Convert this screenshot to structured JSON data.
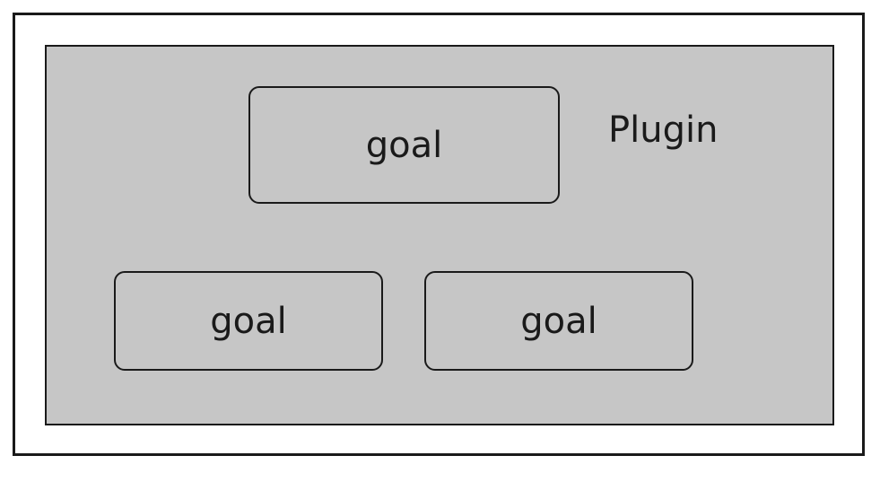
{
  "diagram": {
    "plugin_label": "Plugin",
    "goals": [
      {
        "label": "goal"
      },
      {
        "label": "goal"
      },
      {
        "label": "goal"
      }
    ]
  },
  "colors": {
    "background": "#ffffff",
    "container_fill": "#c6c6c6",
    "stroke": "#1a1a1a"
  }
}
